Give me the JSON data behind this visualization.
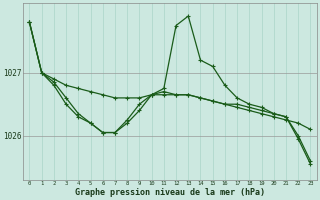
{
  "xlabel": "Graphe pression niveau de la mer (hPa)",
  "bg_color": "#cce8e0",
  "line_color": "#1a5c1a",
  "grid_v_color": "#aad4c8",
  "grid_h_color": "#999999",
  "x_ticks": [
    0,
    1,
    2,
    3,
    4,
    5,
    6,
    7,
    8,
    9,
    10,
    11,
    12,
    13,
    14,
    15,
    16,
    17,
    18,
    19,
    20,
    21,
    22,
    23
  ],
  "ylim": [
    1025.3,
    1028.1
  ],
  "yticks": [
    1026,
    1027
  ],
  "series1": [
    1027.8,
    1027.0,
    1026.9,
    1026.8,
    1026.75,
    1026.7,
    1026.65,
    1026.6,
    1026.6,
    1026.6,
    1026.65,
    1026.65,
    1026.65,
    1026.65,
    1026.6,
    1026.55,
    1026.5,
    1026.45,
    1026.4,
    1026.35,
    1026.3,
    1026.25,
    1026.2,
    1026.1
  ],
  "series2": [
    1027.8,
    1027.0,
    1026.8,
    1026.5,
    1026.3,
    1026.2,
    1026.05,
    1026.05,
    1026.2,
    1026.4,
    1026.65,
    1026.75,
    1027.75,
    1027.9,
    1027.2,
    1027.1,
    1026.8,
    1026.6,
    1026.5,
    1026.45,
    1026.35,
    1026.3,
    1026.0,
    1025.6
  ],
  "series3": [
    1027.8,
    1027.0,
    1026.85,
    1026.6,
    1026.35,
    1026.2,
    1026.05,
    1026.05,
    1026.25,
    1026.5,
    1026.65,
    1026.7,
    1026.65,
    1026.65,
    1026.6,
    1026.55,
    1026.5,
    1026.5,
    1026.45,
    1026.4,
    1026.35,
    1026.3,
    1025.95,
    1025.55
  ]
}
